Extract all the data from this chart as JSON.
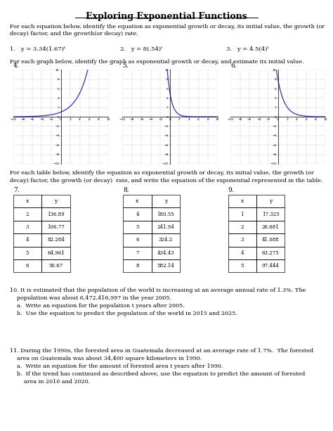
{
  "title": "Exploring Exponential Functions",
  "section1_text": "For each equation below, identify the equation as exponential growth or decay, its initial value, the growth (or\ndecay) factor, and the growth(or decay) rate.",
  "equations": [
    "1.   y = 3.34(1.67)ᵗ",
    "2.   y = 8(.54)ᵗ",
    "3.   y = 4.5(4)ᵗ"
  ],
  "section2_text": "For each graph below, identify the graph as exponential growth or decay, and estimate its initial value.",
  "graph_labels": [
    "4.",
    "5.",
    "6."
  ],
  "section3_text": "For each table below, identify the equation as exponential growth or decay, its initial value, the growth (or\ndecay) factor, the growth (or decay)  rate, and write the equation of the exponential represented in the table.",
  "table7_label": "7.",
  "table7": {
    "x": [
      2,
      3,
      4,
      5,
      6
    ],
    "y": [
      136.89,
      106.77,
      82.284,
      64.961,
      50.67
    ]
  },
  "table8_label": "8.",
  "table8": {
    "x": [
      4,
      5,
      6,
      7,
      8
    ],
    "y": [
      180.55,
      241.94,
      324.2,
      434.43,
      582.14
    ]
  },
  "table9_label": "9.",
  "table9": {
    "x": [
      1,
      2,
      3,
      4,
      5
    ],
    "y": [
      17.325,
      26.681,
      41.088,
      63.275,
      97.444
    ]
  },
  "problem10_text": "10. It is estimated that the population of the world is increasing at an average annual rate of 1.3%. The\n    population was about 6,472,416,997 in the year 2005.\n    a.  Write an equation for the population t years after 2005.\n    b.  Use the equation to predict the population of the world in 2015 and 2025.",
  "problem11_text": "11. During the 1990s, the forested area in Guatemala decreased at an average rate of 1.7%.  The forested\n    area on Guatemala was about 34,400 square kilometers in 1990.\n    a.  Write an equation for the amount of forested area t years after 1990.\n    b.  If the trend has continued as described above, use the equation to predict the amount of forested\n        area in 2010 and 2020.",
  "line_color": "#3333aa",
  "bg_color": "#ffffff",
  "text_color": "#000000"
}
